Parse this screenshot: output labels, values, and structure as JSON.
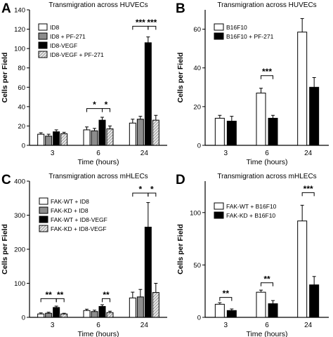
{
  "colors": {
    "white_fill": "#ffffff",
    "gray_fill": "#8c8c8c",
    "black_fill": "#000000",
    "hatch_fill": "#d9d9d9",
    "stroke": "#000000"
  },
  "chart_data": [
    {
      "panel_letter": "A",
      "type": "bar",
      "title": "Transmigration across HUVECs",
      "xlabel": "Time (hours)",
      "ylabel": "Cells per Field",
      "ylim": [
        0,
        140
      ],
      "yticks": [
        "0",
        "20",
        "40",
        "60",
        "80",
        "100",
        "120",
        "140"
      ],
      "categories": [
        "3",
        "6",
        "24"
      ],
      "legend_position": "top-left",
      "series": [
        {
          "name": "ID8",
          "style": "white",
          "values": [
            11.5,
            16,
            23
          ],
          "errors": [
            1.5,
            3,
            4
          ]
        },
        {
          "name": "ID8 + PF-271",
          "style": "gray",
          "values": [
            9.5,
            15,
            27
          ],
          "errors": [
            2,
            2.5,
            3
          ]
        },
        {
          "name": "ID8-VEGF",
          "style": "black",
          "values": [
            14,
            26,
            106
          ],
          "errors": [
            2,
            3,
            6
          ]
        },
        {
          "name": "ID8-VEGF + PF-271",
          "style": "hatch",
          "values": [
            12,
            17,
            26
          ],
          "errors": [
            1.5,
            3,
            5
          ]
        }
      ],
      "significance": [
        {
          "label": "*",
          "category": 1,
          "from_series": 0,
          "to_series": 2,
          "y": 38
        },
        {
          "label": "*",
          "category": 1,
          "from_series": 2,
          "to_series": 3,
          "y": 38
        },
        {
          "label": "***",
          "category": 2,
          "from_series": 0,
          "to_series": 2,
          "y": 123
        },
        {
          "label": "***",
          "category": 2,
          "from_series": 2,
          "to_series": 3,
          "y": 123
        }
      ]
    },
    {
      "panel_letter": "B",
      "type": "bar",
      "title": "Transmigration across HUVECs",
      "xlabel": "Time (hours)",
      "ylabel": "Cells per Field",
      "ylim": [
        0,
        70
      ],
      "yticks": [
        "0",
        "20",
        "40",
        "60"
      ],
      "categories": [
        "3",
        "6",
        "24"
      ],
      "legend_position": "top-left",
      "series": [
        {
          "name": "B16F10",
          "style": "white",
          "values": [
            14,
            27,
            58.5
          ],
          "errors": [
            1.5,
            2.5,
            7
          ]
        },
        {
          "name": "B16F10 + PF-271",
          "style": "black",
          "values": [
            12.5,
            14,
            30
          ],
          "errors": [
            2.5,
            1.5,
            5
          ]
        }
      ],
      "significance": [
        {
          "label": "***",
          "category": 1,
          "from_series": 0,
          "to_series": 1,
          "y": 36
        }
      ]
    },
    {
      "panel_letter": "C",
      "type": "bar",
      "title": "Transmigration across mHLECs",
      "xlabel": "Time (hours)",
      "ylabel": "Cells per Field",
      "ylim": [
        0,
        400
      ],
      "yticks": [
        "0",
        "100",
        "200",
        "300",
        "400"
      ],
      "categories": [
        "3",
        "6",
        "24"
      ],
      "legend_position": "top-left",
      "series": [
        {
          "name": "FAK-WT + ID8",
          "style": "white",
          "values": [
            10,
            20,
            57
          ],
          "errors": [
            3,
            4,
            17
          ]
        },
        {
          "name": "FAK-KD + ID8",
          "style": "gray",
          "values": [
            12,
            17,
            60
          ],
          "errors": [
            3,
            4,
            22
          ]
        },
        {
          "name": "FAK-WT + ID8-VEGF",
          "style": "black",
          "values": [
            29,
            32,
            265
          ],
          "errors": [
            4,
            5,
            72
          ]
        },
        {
          "name": "FAK-KD + ID8-VEGF",
          "style": "hatch",
          "values": [
            10,
            14,
            73
          ],
          "errors": [
            2,
            4,
            27
          ]
        }
      ],
      "significance": [
        {
          "label": "**",
          "category": 0,
          "from_series": 0,
          "to_series": 2,
          "y": 55
        },
        {
          "label": "**",
          "category": 0,
          "from_series": 2,
          "to_series": 3,
          "y": 55
        },
        {
          "label": "**",
          "category": 1,
          "from_series": 2,
          "to_series": 3,
          "y": 55
        },
        {
          "label": "*",
          "category": 2,
          "from_series": 0,
          "to_series": 2,
          "y": 365
        },
        {
          "label": "*",
          "category": 2,
          "from_series": 2,
          "to_series": 3,
          "y": 365
        }
      ]
    },
    {
      "panel_letter": "D",
      "type": "bar",
      "title": "Transmigration across mHLECs",
      "xlabel": "Time (hours)",
      "ylabel": "Cells per Field",
      "ylim": [
        0,
        130
      ],
      "yticks": [
        "0",
        "50",
        "100"
      ],
      "categories": [
        "3",
        "6",
        "24"
      ],
      "legend_position": "top-left",
      "series": [
        {
          "name": "FAK-WT + B16F10",
          "style": "white",
          "values": [
            12.5,
            24,
            92
          ],
          "errors": [
            1.5,
            2,
            15
          ]
        },
        {
          "name": "FAK-KD + B16F10",
          "style": "black",
          "values": [
            6.5,
            13,
            31
          ],
          "errors": [
            1.5,
            3,
            8
          ]
        }
      ],
      "significance": [
        {
          "label": "**",
          "category": 0,
          "from_series": 0,
          "to_series": 1,
          "y": 19
        },
        {
          "label": "**",
          "category": 1,
          "from_series": 0,
          "to_series": 1,
          "y": 33
        },
        {
          "label": "***",
          "category": 2,
          "from_series": 0,
          "to_series": 1,
          "y": 119
        }
      ]
    }
  ]
}
